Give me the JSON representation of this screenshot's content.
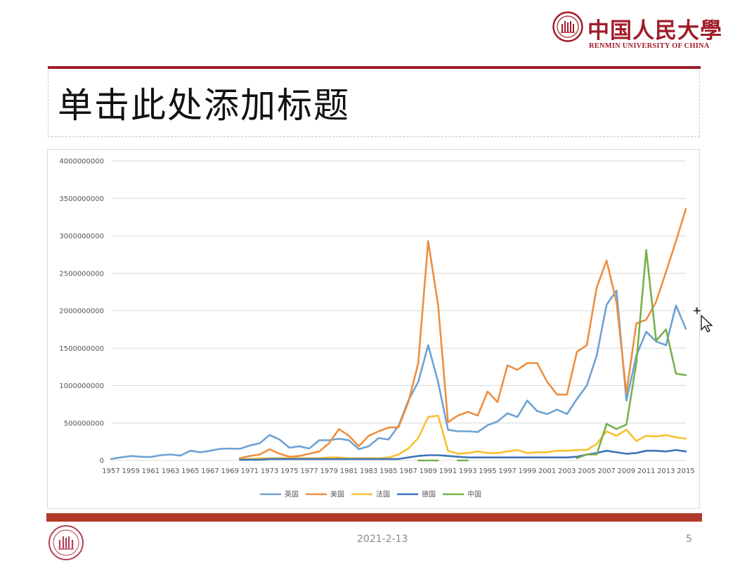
{
  "header": {
    "logo_cn": "中国人民大學",
    "logo_en": "RENMIN UNIVERSITY OF CHINA",
    "seal_icon": "university-seal-icon",
    "brand_color": "#a01c2a"
  },
  "slide": {
    "title": "单击此处添加标题",
    "date": "2021-2-13",
    "page_number": "5"
  },
  "colors": {
    "accent_rule": "#9b1f2c",
    "footer_bar": "#b23a2a"
  },
  "chart_data": {
    "type": "line",
    "title": "",
    "xlabel": "",
    "ylabel": "",
    "ylim": [
      0,
      4000000000
    ],
    "yticks": [
      0,
      500000000,
      1000000000,
      1500000000,
      2000000000,
      2500000000,
      3000000000,
      3500000000,
      4000000000
    ],
    "grid": true,
    "legend_position": "bottom",
    "x": [
      1957,
      1958,
      1959,
      1960,
      1961,
      1962,
      1963,
      1964,
      1965,
      1966,
      1967,
      1968,
      1969,
      1970,
      1971,
      1972,
      1973,
      1974,
      1975,
      1976,
      1977,
      1978,
      1979,
      1980,
      1981,
      1982,
      1983,
      1984,
      1985,
      1986,
      1987,
      1988,
      1989,
      1990,
      1991,
      1992,
      1993,
      1994,
      1995,
      1996,
      1997,
      1998,
      1999,
      2000,
      2001,
      2002,
      2003,
      2004,
      2005,
      2006,
      2007,
      2008,
      2009,
      2010,
      2011,
      2012,
      2013,
      2014,
      2015
    ],
    "x_tick_labels": [
      "1957",
      "1959",
      "1961",
      "1963",
      "1965",
      "1967",
      "1969",
      "1971",
      "1973",
      "1975",
      "1977",
      "1979",
      "1981",
      "1983",
      "1985",
      "1987",
      "1989",
      "1991",
      "1993",
      "1995",
      "1997",
      "1999",
      "2001",
      "2003",
      "2005",
      "2007",
      "2009",
      "2011",
      "2013",
      "2015"
    ],
    "series": [
      {
        "name": "英国",
        "color": "#6fa1d3",
        "values": [
          20000000,
          40000000,
          60000000,
          50000000,
          45000000,
          70000000,
          80000000,
          65000000,
          130000000,
          110000000,
          130000000,
          155000000,
          160000000,
          155000000,
          200000000,
          230000000,
          340000000,
          280000000,
          170000000,
          190000000,
          160000000,
          270000000,
          270000000,
          290000000,
          270000000,
          150000000,
          190000000,
          300000000,
          280000000,
          460000000,
          800000000,
          1050000000,
          1540000000,
          1050000000,
          410000000,
          390000000,
          390000000,
          380000000,
          470000000,
          520000000,
          630000000,
          580000000,
          800000000,
          660000000,
          620000000,
          680000000,
          620000000,
          820000000,
          1000000000,
          1400000000,
          2080000000,
          2270000000,
          800000000,
          1400000000,
          1720000000,
          1590000000,
          1540000000,
          2070000000,
          1760000000
        ]
      },
      {
        "name": "美国",
        "color": "#ed8f40",
        "values": [
          null,
          null,
          null,
          null,
          null,
          null,
          null,
          null,
          null,
          null,
          null,
          null,
          null,
          30000000,
          60000000,
          80000000,
          150000000,
          90000000,
          50000000,
          60000000,
          90000000,
          120000000,
          230000000,
          420000000,
          330000000,
          190000000,
          330000000,
          390000000,
          440000000,
          440000000,
          780000000,
          1300000000,
          2930000000,
          2080000000,
          510000000,
          600000000,
          650000000,
          600000000,
          920000000,
          780000000,
          1270000000,
          1210000000,
          1300000000,
          1300000000,
          1050000000,
          880000000,
          880000000,
          1450000000,
          1540000000,
          2310000000,
          2670000000,
          2110000000,
          900000000,
          1830000000,
          1880000000,
          2120000000,
          2520000000,
          2930000000,
          3360000000
        ]
      },
      {
        "name": "法国",
        "color": "#f7c12f",
        "values": [
          null,
          null,
          null,
          null,
          null,
          null,
          null,
          null,
          null,
          null,
          null,
          null,
          null,
          20000000,
          20000000,
          30000000,
          30000000,
          30000000,
          30000000,
          30000000,
          30000000,
          30000000,
          40000000,
          40000000,
          30000000,
          30000000,
          30000000,
          30000000,
          40000000,
          80000000,
          160000000,
          300000000,
          580000000,
          600000000,
          130000000,
          90000000,
          100000000,
          120000000,
          100000000,
          100000000,
          120000000,
          140000000,
          100000000,
          110000000,
          110000000,
          130000000,
          130000000,
          140000000,
          140000000,
          220000000,
          390000000,
          330000000,
          410000000,
          260000000,
          330000000,
          320000000,
          340000000,
          310000000,
          290000000
        ]
      },
      {
        "name": "德国",
        "color": "#3f73b8",
        "values": [
          null,
          null,
          null,
          null,
          null,
          null,
          null,
          null,
          null,
          null,
          null,
          null,
          null,
          10000000,
          10000000,
          10000000,
          20000000,
          20000000,
          20000000,
          20000000,
          20000000,
          20000000,
          20000000,
          20000000,
          20000000,
          20000000,
          20000000,
          20000000,
          20000000,
          20000000,
          40000000,
          60000000,
          70000000,
          70000000,
          60000000,
          50000000,
          40000000,
          40000000,
          40000000,
          40000000,
          40000000,
          40000000,
          40000000,
          40000000,
          40000000,
          40000000,
          40000000,
          50000000,
          80000000,
          100000000,
          130000000,
          110000000,
          90000000,
          100000000,
          130000000,
          130000000,
          120000000,
          140000000,
          120000000
        ]
      },
      {
        "name": "中国",
        "color": "#78b04c",
        "values": [
          null,
          null,
          null,
          null,
          null,
          null,
          null,
          null,
          null,
          null,
          null,
          null,
          null,
          null,
          null,
          null,
          null,
          null,
          null,
          null,
          null,
          null,
          null,
          null,
          null,
          null,
          null,
          null,
          null,
          null,
          null,
          0,
          0,
          0,
          null,
          0,
          0,
          null,
          null,
          null,
          null,
          null,
          null,
          null,
          null,
          null,
          null,
          30000000,
          80000000,
          80000000,
          490000000,
          420000000,
          480000000,
          1300000000,
          2810000000,
          1600000000,
          1750000000,
          1160000000,
          1140000000
        ]
      }
    ]
  }
}
